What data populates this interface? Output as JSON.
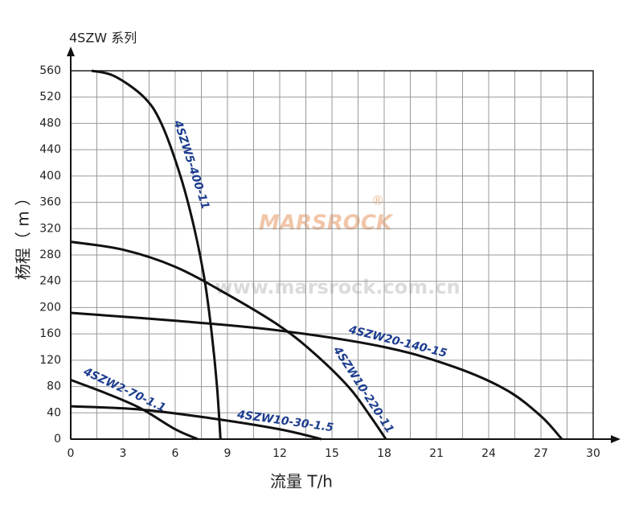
{
  "chart_data": {
    "type": "line",
    "title": "4SZW 系列",
    "x_label": "流量 T/h",
    "y_label": "杨程（ m ）",
    "watermarks": [
      "MARSROCK",
      "®",
      "www.marsrock.com.cn"
    ],
    "xlim": [
      0,
      30
    ],
    "xticks": [
      0,
      3,
      6,
      9,
      12,
      15,
      18,
      21,
      24,
      27,
      30
    ],
    "xminorticks": [
      1.5,
      4.5,
      7.5,
      10.5,
      13.5,
      16.5,
      19.5,
      22.5,
      25.5,
      28.5
    ],
    "ylim": [
      0,
      560
    ],
    "yticks": [
      0,
      40,
      80,
      120,
      160,
      200,
      240,
      280,
      320,
      360,
      400,
      440,
      480,
      520,
      560
    ],
    "grid": true,
    "label_color": "#1d3d8f",
    "series": [
      {
        "name": "4SZW5-400-11",
        "color": "#111111",
        "x": [
          1.2,
          2.5,
          4.2,
          5.2,
          6.3,
          7.1,
          7.7,
          8.1,
          8.4,
          8.6
        ],
        "values": [
          560,
          552,
          520,
          480,
          400,
          320,
          240,
          160,
          80,
          0
        ]
      },
      {
        "name": "4SZW10-220-11",
        "color": "#111111",
        "x": [
          0,
          3,
          6,
          9,
          12,
          14,
          16,
          17.2,
          18.1
        ],
        "values": [
          300,
          288,
          262,
          220,
          172,
          130,
          78,
          35,
          0
        ]
      },
      {
        "name": "4SZW20-140-15",
        "color": "#111111",
        "x": [
          0,
          6,
          12,
          18,
          22,
          25,
          27,
          28.2
        ],
        "values": [
          192,
          180,
          165,
          140,
          110,
          75,
          35,
          0
        ]
      },
      {
        "name": "4SZW2-70-1.1",
        "color": "#111111",
        "x": [
          0,
          2,
          4,
          6,
          7.3
        ],
        "values": [
          90,
          70,
          47,
          15,
          0
        ]
      },
      {
        "name": "4SZW10-30-1.5",
        "color": "#111111",
        "x": [
          0,
          4,
          8,
          12,
          14.4
        ],
        "values": [
          50,
          45,
          32,
          15,
          0
        ]
      }
    ]
  }
}
